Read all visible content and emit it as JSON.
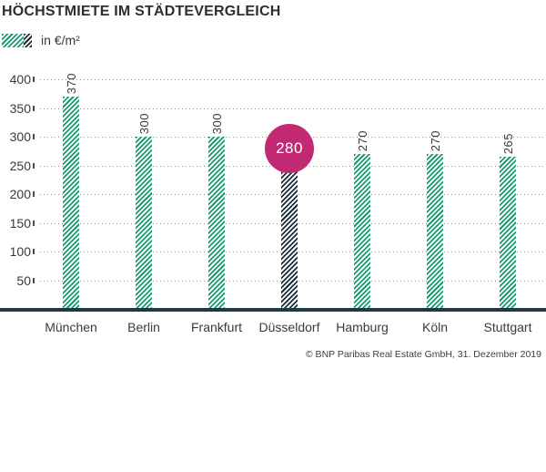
{
  "title": "HÖCHSTMIETE IM STÄDTEVERGLEICH",
  "legend": {
    "label": "in €/m²"
  },
  "source": "© BNP Paribas Real Estate GmbH, 31. Dezember 2019",
  "chart_data": {
    "type": "bar",
    "title": "HÖCHSTMIETE IM STÄDTEVERGLEICH",
    "legend_label": "in €/m²",
    "categories": [
      "München",
      "Berlin",
      "Frankfurt",
      "Düsseldorf",
      "Hamburg",
      "Köln",
      "Stuttgart"
    ],
    "values": [
      370,
      300,
      300,
      280,
      270,
      270,
      265
    ],
    "value_labels": [
      "370",
      "300",
      "300",
      "280",
      "270",
      "270",
      "265"
    ],
    "highlight_index": 3,
    "highlight_style": "dark-striped bar with magenta circle badge showing value",
    "unit": "€/m²",
    "xlabel": "",
    "ylabel": "",
    "ylim": [
      0,
      400
    ],
    "y_ticks": [
      50,
      100,
      150,
      200,
      250,
      300,
      350,
      400
    ],
    "grid": "horizontal dotted gridlines",
    "legend_position": "top-left",
    "bar_pattern": "diagonal stripes",
    "colors": {
      "bar_stripe_green": "#169a71",
      "highlight_stripe_navy": "#182e3a",
      "badge_magenta": "#c12a73",
      "baseline": "#1e3a44",
      "grid_dots": "#8f8f8f",
      "text": "#3a3a3a"
    }
  }
}
